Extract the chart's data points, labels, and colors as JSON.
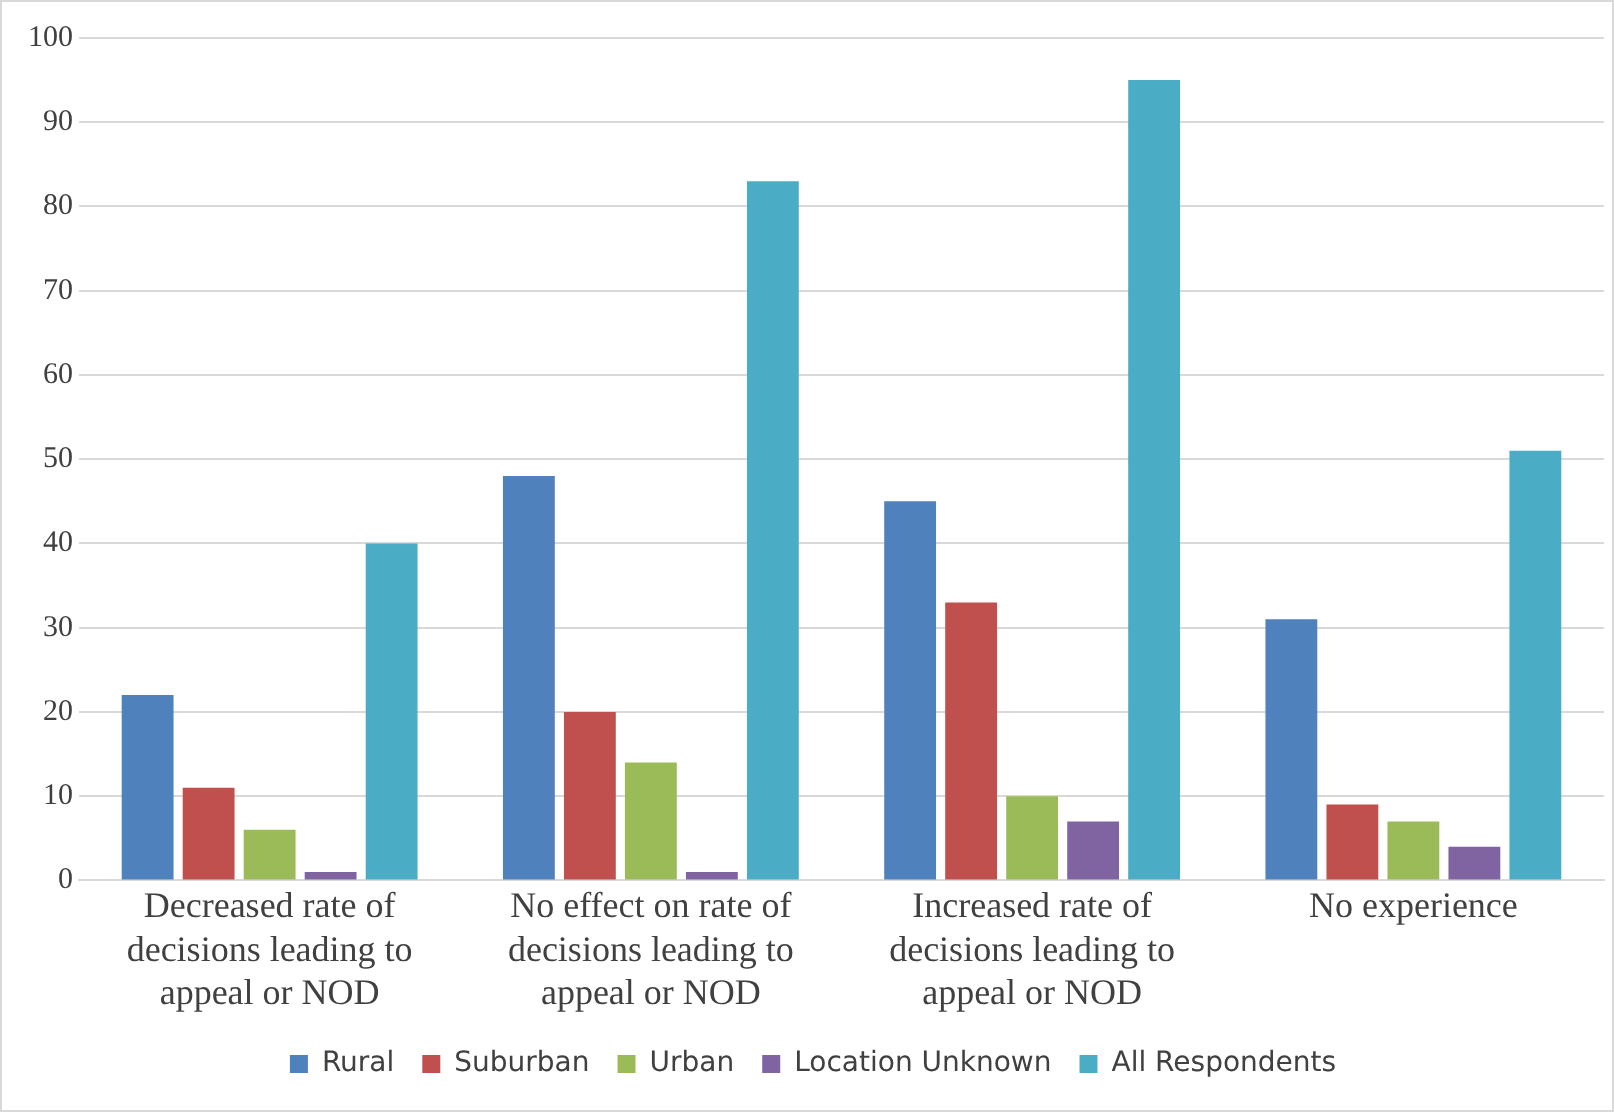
{
  "chart_data": {
    "type": "bar",
    "categories": [
      "Decreased rate of decisions leading to appeal or NOD",
      "No effect on rate of decisions leading to appeal or NOD",
      "Increased rate of decisions leading to appeal or NOD",
      "No experience"
    ],
    "series": [
      {
        "name": "Rural",
        "color": "#4f81bd",
        "values": [
          22,
          48,
          45,
          31
        ]
      },
      {
        "name": "Suburban",
        "color": "#c0504d",
        "values": [
          11,
          20,
          33,
          9
        ]
      },
      {
        "name": "Urban",
        "color": "#9bbb59",
        "values": [
          6,
          14,
          10,
          7
        ]
      },
      {
        "name": "Location Unknown",
        "color": "#8064a2",
        "values": [
          1,
          1,
          7,
          4
        ]
      },
      {
        "name": "All Respondents",
        "color": "#4bacc6",
        "values": [
          40,
          83,
          95,
          51
        ]
      }
    ],
    "ylim": [
      0,
      100
    ],
    "yticks": [
      0,
      10,
      20,
      30,
      40,
      50,
      60,
      70,
      80,
      90,
      100
    ],
    "grid": "y",
    "legend": "bottom"
  }
}
